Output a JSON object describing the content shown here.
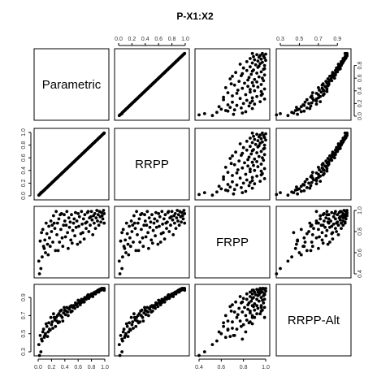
{
  "chart_data": {
    "type": "scatter-matrix",
    "title": "P-X1:X2",
    "variables": [
      "Parametric",
      "RRPP",
      "FRPP",
      "RRPP-Alt"
    ],
    "ranges": {
      "Parametric": [
        0,
        1
      ],
      "RRPP": [
        0,
        1
      ],
      "FRPP": [
        0.4,
        1
      ],
      "RRPP-Alt": [
        0.3,
        1
      ]
    },
    "tick_labels": {
      "top_col2": [
        "0.0",
        "0.2",
        "0.4",
        "0.6",
        "0.8",
        "1.0"
      ],
      "top_col4": [
        "0.3",
        "0.5",
        "0.7",
        "0.9"
      ],
      "bottom_col1": [
        "0.0",
        "0.2",
        "0.4",
        "0.6",
        "0.8",
        "1.0"
      ],
      "bottom_col3": [
        "0.4",
        "0.6",
        "0.8",
        "1.0"
      ],
      "left_row2": [
        "0.0",
        "0.2",
        "0.4",
        "0.6",
        "0.8",
        "1.0"
      ],
      "left_row4": [
        "0.3",
        "0.5",
        "0.7",
        "0.9"
      ],
      "right_row1": [
        "0.0",
        "0.2",
        "0.4",
        "0.6",
        "0.8"
      ],
      "right_row3": [
        "0.4",
        "0.6",
        "0.8",
        "1.0"
      ]
    },
    "n_points": 100,
    "points": [
      [
        0.02,
        0.02,
        0.4,
        0.26
      ],
      [
        0.04,
        0.05,
        0.45,
        0.3
      ],
      [
        0.06,
        0.06,
        0.56,
        0.42
      ],
      [
        0.08,
        0.08,
        0.66,
        0.55
      ],
      [
        0.1,
        0.1,
        0.72,
        0.48
      ],
      [
        0.11,
        0.11,
        0.6,
        0.5
      ],
      [
        0.13,
        0.13,
        0.78,
        0.58
      ],
      [
        0.14,
        0.14,
        0.68,
        0.47
      ],
      [
        0.16,
        0.16,
        0.85,
        0.62
      ],
      [
        0.17,
        0.17,
        0.74,
        0.55
      ],
      [
        0.19,
        0.19,
        0.9,
        0.68
      ],
      [
        0.2,
        0.2,
        0.8,
        0.6
      ],
      [
        0.22,
        0.22,
        0.7,
        0.56
      ],
      [
        0.23,
        0.23,
        0.95,
        0.72
      ],
      [
        0.25,
        0.25,
        0.83,
        0.65
      ],
      [
        0.26,
        0.26,
        0.62,
        0.58
      ],
      [
        0.28,
        0.28,
        0.77,
        0.64
      ],
      [
        0.29,
        0.29,
        0.88,
        0.7
      ],
      [
        0.31,
        0.31,
        0.92,
        0.72
      ],
      [
        0.32,
        0.32,
        0.7,
        0.63
      ],
      [
        0.34,
        0.34,
        0.82,
        0.7
      ],
      [
        0.35,
        0.35,
        0.97,
        0.76
      ],
      [
        0.37,
        0.37,
        0.66,
        0.64
      ],
      [
        0.38,
        0.38,
        0.86,
        0.73
      ],
      [
        0.4,
        0.4,
        0.9,
        0.76
      ],
      [
        0.41,
        0.41,
        0.75,
        0.71
      ],
      [
        0.43,
        0.43,
        0.99,
        0.79
      ],
      [
        0.44,
        0.44,
        0.79,
        0.74
      ],
      [
        0.46,
        0.46,
        0.93,
        0.78
      ],
      [
        0.47,
        0.47,
        0.84,
        0.77
      ],
      [
        0.49,
        0.49,
        0.72,
        0.74
      ],
      [
        0.5,
        0.5,
        0.96,
        0.81
      ],
      [
        0.52,
        0.52,
        0.81,
        0.79
      ],
      [
        0.53,
        0.53,
        0.88,
        0.81
      ],
      [
        0.55,
        0.55,
        0.76,
        0.78
      ],
      [
        0.56,
        0.56,
        0.98,
        0.84
      ],
      [
        0.58,
        0.58,
        0.9,
        0.83
      ],
      [
        0.59,
        0.59,
        0.68,
        0.8
      ],
      [
        0.61,
        0.61,
        0.85,
        0.84
      ],
      [
        0.62,
        0.62,
        0.94,
        0.86
      ],
      [
        0.64,
        0.64,
        0.78,
        0.84
      ],
      [
        0.65,
        0.65,
        0.99,
        0.88
      ],
      [
        0.66,
        0.66,
        0.87,
        0.86
      ],
      [
        0.68,
        0.68,
        0.92,
        0.88
      ],
      [
        0.69,
        0.69,
        0.73,
        0.85
      ],
      [
        0.7,
        0.7,
        0.96,
        0.9
      ],
      [
        0.72,
        0.72,
        0.83,
        0.88
      ],
      [
        0.73,
        0.73,
        0.89,
        0.9
      ],
      [
        0.74,
        0.74,
        0.98,
        0.92
      ],
      [
        0.76,
        0.76,
        0.8,
        0.89
      ],
      [
        0.77,
        0.77,
        0.93,
        0.92
      ],
      [
        0.78,
        0.78,
        0.86,
        0.91
      ],
      [
        0.8,
        0.8,
        0.99,
        0.94
      ],
      [
        0.81,
        0.81,
        0.91,
        0.93
      ],
      [
        0.82,
        0.82,
        0.77,
        0.91
      ],
      [
        0.83,
        0.83,
        0.95,
        0.95
      ],
      [
        0.84,
        0.84,
        0.88,
        0.94
      ],
      [
        0.85,
        0.85,
        0.97,
        0.96
      ],
      [
        0.86,
        0.86,
        0.83,
        0.94
      ],
      [
        0.87,
        0.87,
        0.93,
        0.96
      ],
      [
        0.88,
        0.88,
        1.0,
        0.97
      ],
      [
        0.89,
        0.89,
        0.9,
        0.96
      ],
      [
        0.9,
        0.9,
        0.96,
        0.98
      ],
      [
        0.91,
        0.91,
        0.86,
        0.96
      ],
      [
        0.92,
        0.92,
        0.99,
        0.99
      ],
      [
        0.93,
        0.93,
        0.94,
        0.98
      ],
      [
        0.94,
        0.94,
        0.89,
        0.98
      ],
      [
        0.95,
        0.95,
        0.98,
        1.0
      ],
      [
        0.96,
        0.96,
        0.95,
        1.0
      ],
      [
        0.97,
        0.97,
        0.92,
        0.99
      ],
      [
        0.98,
        0.98,
        1.0,
        1.0
      ],
      [
        0.99,
        0.99,
        0.97,
        1.0
      ],
      [
        0.15,
        0.15,
        0.58,
        0.52
      ],
      [
        0.27,
        0.27,
        0.99,
        0.68
      ],
      [
        0.36,
        0.36,
        0.74,
        0.68
      ],
      [
        0.45,
        0.45,
        0.64,
        0.7
      ],
      [
        0.54,
        0.54,
        0.92,
        0.81
      ],
      [
        0.63,
        0.63,
        0.7,
        0.82
      ],
      [
        0.71,
        0.71,
        0.88,
        0.89
      ],
      [
        0.79,
        0.79,
        0.94,
        0.93
      ],
      [
        0.24,
        0.24,
        0.88,
        0.68
      ],
      [
        0.33,
        0.33,
        0.96,
        0.75
      ],
      [
        0.42,
        0.42,
        0.86,
        0.75
      ],
      [
        0.51,
        0.51,
        0.69,
        0.75
      ],
      [
        0.57,
        0.57,
        0.84,
        0.82
      ],
      [
        0.67,
        0.67,
        0.79,
        0.85
      ],
      [
        0.75,
        0.75,
        0.99,
        0.93
      ],
      [
        0.09,
        0.09,
        0.64,
        0.46
      ],
      [
        0.18,
        0.18,
        0.66,
        0.54
      ],
      [
        0.21,
        0.21,
        0.86,
        0.63
      ],
      [
        0.3,
        0.3,
        0.62,
        0.62
      ],
      [
        0.39,
        0.39,
        0.96,
        0.79
      ],
      [
        0.48,
        0.48,
        0.89,
        0.8
      ],
      [
        0.6,
        0.6,
        0.97,
        0.87
      ],
      [
        0.12,
        0.12,
        0.88,
        0.61
      ],
      [
        0.03,
        0.03,
        0.71,
        0.48
      ],
      [
        0.07,
        0.07,
        0.82,
        0.52
      ],
      [
        0.01,
        0.01,
        0.52,
        0.38
      ],
      [
        0.05,
        0.05,
        0.79,
        0.44
      ],
      [
        0.99,
        0.99,
        0.88,
        0.98
      ]
    ]
  }
}
